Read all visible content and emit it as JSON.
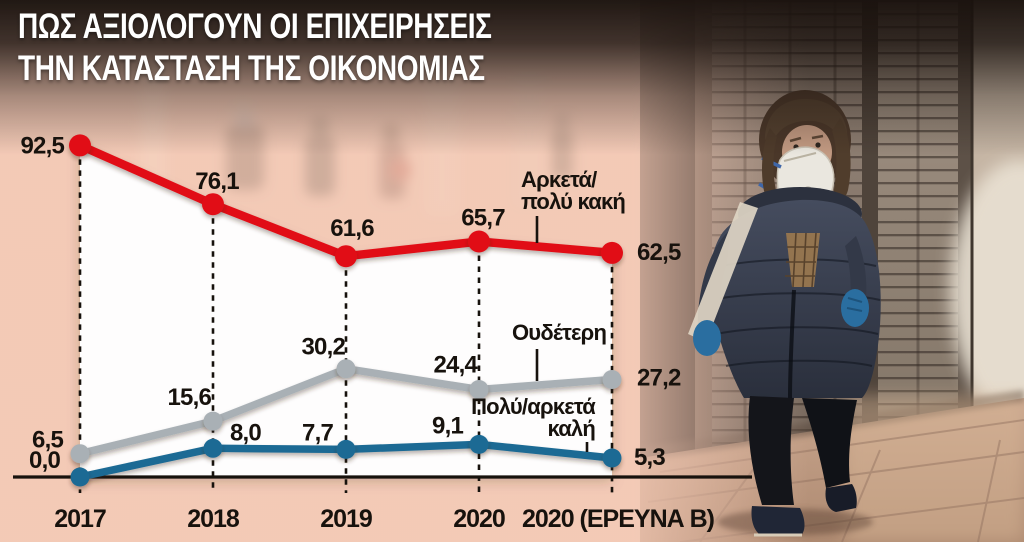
{
  "title": {
    "line1": "ΠΩΣ ΑΞΙΟΛΟΓΟΥΝ ΟΙ ΕΠΙΧΕΙΡΗΣΕΙΣ",
    "line2": "ΤΗΝ ΚΑΤΑΣΤΑΣΗ ΤΗΣ ΟΙΚΟΝΟΜΙΑΣ"
  },
  "chart_data": {
    "type": "line",
    "categories": [
      "2017",
      "2018",
      "2019",
      "2020",
      "2020 (ΕΡΕΥΝΑ Β)"
    ],
    "series": [
      {
        "key": "bad",
        "name": "Αρκετά/πολύ κακή",
        "legend_lines": [
          "Αρκετά/",
          "πολύ κακή"
        ],
        "color": "#e10d17",
        "values": [
          92.5,
          76.1,
          61.6,
          65.7,
          62.5
        ],
        "value_labels": [
          "92,5",
          "76,1",
          "61,6",
          "65,7",
          "62,5"
        ]
      },
      {
        "key": "neutral",
        "name": "Ουδέτερη",
        "legend_lines": [
          "Ουδέτερη"
        ],
        "color": "#a9b0b5",
        "values": [
          6.5,
          15.6,
          30.2,
          24.4,
          27.2
        ],
        "value_labels": [
          "6,5",
          "15,6",
          "30,2",
          "24,4",
          "27,2"
        ]
      },
      {
        "key": "good",
        "name": "Πολύ/αρκετά καλή",
        "legend_lines": [
          "Πολύ/αρκετά",
          "καλή"
        ],
        "color": "#1b6b94",
        "values": [
          0.0,
          8.0,
          7.7,
          9.1,
          5.3
        ],
        "value_labels": [
          "0,0",
          "8,0",
          "7,7",
          "9,1",
          "5,3"
        ]
      }
    ],
    "xlabel": "",
    "ylabel": "",
    "ylim": [
      0,
      100
    ],
    "grid": "vertical-dashed-at-categories",
    "legend_position": "inline-near-lines",
    "baseline_axis": true,
    "value_format": "comma-decimal"
  },
  "colors": {
    "accent_red": "#e10d17",
    "accent_gray": "#a9b0b5",
    "accent_blue": "#1b6b94",
    "title_text": "#ffffff",
    "label_text": "#17120d",
    "plot_fill": "#ffffff",
    "background_wash": "#f4cab6"
  }
}
